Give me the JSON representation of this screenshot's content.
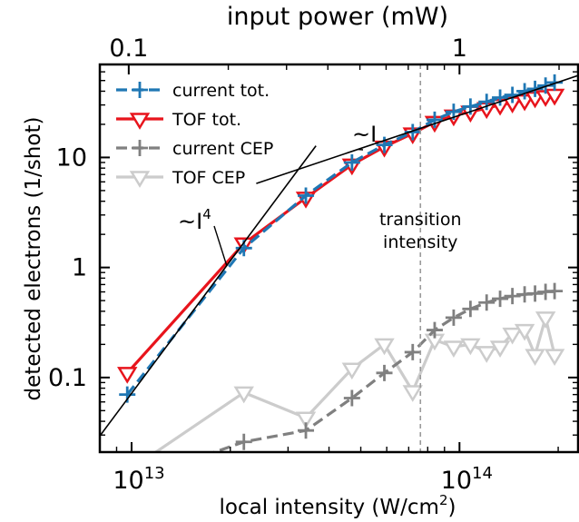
{
  "chart_data": {
    "type": "line",
    "xscale": "log",
    "yscale": "log",
    "xlim": [
      8000000000000.0,
      230000000000000.0
    ],
    "ylim": [
      0.021,
      70
    ],
    "xlabel": "local intensity (W/cm",
    "xlabel_sup": "2",
    "xlabel_end": ")",
    "ylabel": "detected electrons (1/shot)",
    "top_axis_label": "input power (mW)",
    "top_ticks": [
      {
        "label": "0.1",
        "x": 9800000000000.0
      },
      {
        "label": "1",
        "x": 100000000000000.0
      }
    ],
    "x_ticks": [
      {
        "base": "10",
        "exp": "13",
        "x": 10000000000000.0
      },
      {
        "base": "10",
        "exp": "14",
        "x": 100000000000000.0
      }
    ],
    "y_ticks": [
      {
        "label": "0.1",
        "y": 0.1
      },
      {
        "label": "1",
        "y": 1
      },
      {
        "label": "10",
        "y": 10
      }
    ],
    "legend_position": "top-left",
    "series": [
      {
        "name": "current tot.",
        "color": "#1f77b4",
        "dash": "12,6",
        "marker": "plus",
        "x": [
          9700000000000.0,
          22000000000000.0,
          34000000000000.0,
          47000000000000.0,
          59000000000000.0,
          72000000000000.0,
          84000000000000.0,
          96000000000000.0,
          108000000000000.0,
          121000000000000.0,
          133000000000000.0,
          145000000000000.0,
          158000000000000.0,
          170000000000000.0,
          183000000000000.0,
          195000000000000.0
        ],
        "y": [
          0.07,
          1.5,
          4.5,
          9.0,
          13,
          17,
          22,
          26,
          29,
          32,
          35,
          37,
          40,
          42,
          45,
          48
        ]
      },
      {
        "name": "TOF tot.",
        "color": "#e8141c",
        "dash": "",
        "marker": "triangle-down",
        "x": [
          9700000000000.0,
          22000000000000.0,
          34000000000000.0,
          47000000000000.0,
          59000000000000.0,
          72000000000000.0,
          84000000000000.0,
          96000000000000.0,
          108000000000000.0,
          121000000000000.0,
          133000000000000.0,
          145000000000000.0,
          158000000000000.0,
          170000000000000.0,
          183000000000000.0,
          195000000000000.0
        ],
        "y": [
          0.11,
          1.65,
          4.3,
          8.6,
          12.5,
          16.5,
          21,
          24,
          26,
          28,
          30,
          31.5,
          33,
          35,
          36,
          37
        ]
      },
      {
        "name": "current CEP",
        "color": "#808080",
        "dash": "12,6",
        "marker": "plus",
        "x": [
          9700000000000.0,
          22000000000000.0,
          34000000000000.0,
          47000000000000.0,
          59000000000000.0,
          72000000000000.0,
          84000000000000.0,
          96000000000000.0,
          108000000000000.0,
          121000000000000.0,
          133000000000000.0,
          145000000000000.0,
          158000000000000.0,
          170000000000000.0,
          183000000000000.0,
          195000000000000.0
        ],
        "y": [
          0.011,
          0.026,
          0.033,
          0.065,
          0.11,
          0.17,
          0.27,
          0.35,
          0.42,
          0.48,
          0.52,
          0.55,
          0.57,
          0.58,
          0.6,
          0.61
        ]
      },
      {
        "name": "TOF CEP",
        "color": "#cccccc",
        "dash": "",
        "marker": "triangle-down",
        "x": [
          9700000000000.0,
          22000000000000.0,
          34000000000000.0,
          47000000000000.0,
          59000000000000.0,
          72000000000000.0,
          84000000000000.0,
          96000000000000.0,
          108000000000000.0,
          121000000000000.0,
          133000000000000.0,
          145000000000000.0,
          158000000000000.0,
          170000000000000.0,
          183000000000000.0,
          195000000000000.0
        ],
        "y": [
          0.014,
          0.073,
          0.043,
          0.12,
          0.2,
          0.075,
          0.22,
          0.19,
          0.2,
          0.17,
          0.19,
          0.25,
          0.27,
          0.16,
          0.35,
          0.16
        ]
      }
    ],
    "fit_lines": [
      {
        "label": "~I",
        "label_sup": "",
        "slope": 1,
        "x_range": [
          24000000000000.0,
          230000000000000.0
        ],
        "anchor": {
          "x": 60000000000000.0,
          "y": 14.5
        }
      },
      {
        "label": "~I",
        "label_sup": "4",
        "slope": 4,
        "x_range": [
          8000000000000.0,
          36500000000000.0
        ],
        "anchor": {
          "x": 20000000000000.0,
          "y": 1.15
        }
      }
    ],
    "annotations": [
      {
        "text": "transition",
        "line2": "intensity",
        "color": "#9a9a9a"
      }
    ],
    "vline": {
      "x": 76000000000000.0,
      "color": "#9a9a9a",
      "dash": "5,4"
    }
  }
}
